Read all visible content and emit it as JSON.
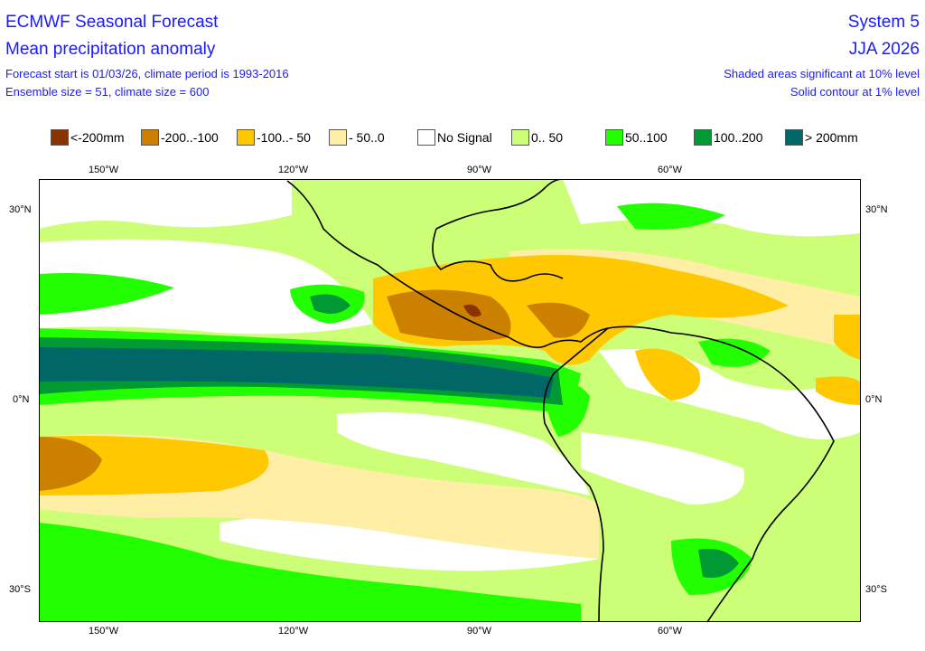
{
  "header": {
    "title": "ECMWF Seasonal Forecast",
    "subtitle": "Mean precipitation anomaly",
    "info1": "Forecast start is 01/03/26, climate period is 1993-2016",
    "info2": "Ensemble size = 51, climate size = 600",
    "system": "System 5",
    "season": "JJA 2026",
    "note1": "Shaded areas significant at 10% level",
    "note2": "Solid contour at 1% level"
  },
  "legend": [
    {
      "label": "<-200mm",
      "color": "#8b3300"
    },
    {
      "label": "-200..-100",
      "color": "#cc8000"
    },
    {
      "label": "-100..- 50",
      "color": "#ffc800"
    },
    {
      "label": "- 50..0",
      "color": "#ffeea6"
    },
    {
      "label": "No Signal",
      "color": "#ffffff"
    },
    {
      "label": "0.. 50",
      "color": "#ccff77"
    },
    {
      "label": "50..100",
      "color": "#22ff00"
    },
    {
      "label": "100..200",
      "color": "#009933"
    },
    {
      "label": "> 200mm",
      "color": "#006666"
    }
  ],
  "axes": {
    "top": [
      "150°W",
      "120°W",
      "90°W",
      "60°W"
    ],
    "bottom": [
      "150°W",
      "120°W",
      "90°W",
      "60°W"
    ],
    "left": [
      "30°N",
      "0°N",
      "30°S"
    ],
    "right": [
      "30°N",
      "0°N",
      "30°S"
    ]
  }
}
